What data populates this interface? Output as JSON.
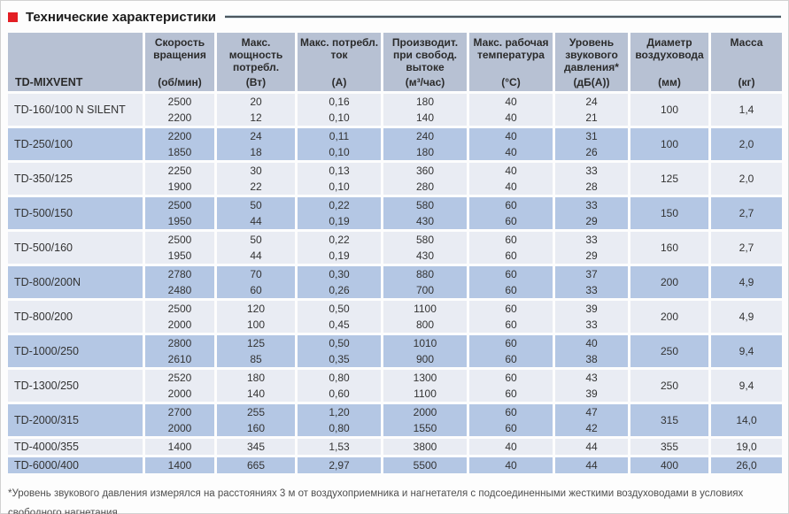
{
  "page": {
    "title": "Технические характеристики",
    "footnote": {
      "lines": [
        "*Уровень звукового давления измерялся на расстояниях 3 м от воздухоприемника и нагнетателя с подсоединенными жесткими воздуховодами в условиях",
        "свободного нагнетания."
      ]
    }
  },
  "colors": {
    "accent_red": "#e31e24",
    "header_bg": "#b7c1d3",
    "row_blue_bg": "#b4c7e4",
    "row_light_bg": "#e9ecf3",
    "text_dark": "#333333",
    "title_rule": "#4d575e"
  },
  "table": {
    "first_column_header": "TD-MIXVENT",
    "columns": [
      {
        "title": "Скорость вращения",
        "unit": "(об/мин)"
      },
      {
        "title": "Макс. мощность потребл.",
        "unit": "(Вт)"
      },
      {
        "title": "Макс. потребл. ток",
        "unit": "(А)"
      },
      {
        "title": "Производит. при свобод. вытоке",
        "unit": "(м³/час)"
      },
      {
        "title": "Макс. рабочая температура",
        "unit": "(°C)"
      },
      {
        "title": "Уровень звукового давления*",
        "unit": "(дБ(А))"
      },
      {
        "title": "Диаметр воздуховода",
        "unit": "(мм)"
      },
      {
        "title": "Масса",
        "unit": "(кг)"
      }
    ],
    "rows": [
      {
        "model": "TD-160/100 N SILENT",
        "speed": [
          "2500",
          "2200"
        ],
        "power": [
          "20",
          "12"
        ],
        "current": [
          "0,16",
          "0,10"
        ],
        "flow": [
          "180",
          "140"
        ],
        "temp": [
          "40",
          "40"
        ],
        "noise": [
          "24",
          "21"
        ],
        "diameter": "100",
        "mass": "1,4"
      },
      {
        "model": "TD-250/100",
        "speed": [
          "2200",
          "1850"
        ],
        "power": [
          "24",
          "18"
        ],
        "current": [
          "0,11",
          "0,10"
        ],
        "flow": [
          "240",
          "180"
        ],
        "temp": [
          "40",
          "40"
        ],
        "noise": [
          "31",
          "26"
        ],
        "diameter": "100",
        "mass": "2,0"
      },
      {
        "model": "TD-350/125",
        "speed": [
          "2250",
          "1900"
        ],
        "power": [
          "30",
          "22"
        ],
        "current": [
          "0,13",
          "0,10"
        ],
        "flow": [
          "360",
          "280"
        ],
        "temp": [
          "40",
          "40"
        ],
        "noise": [
          "33",
          "28"
        ],
        "diameter": "125",
        "mass": "2,0"
      },
      {
        "model": "TD-500/150",
        "speed": [
          "2500",
          "1950"
        ],
        "power": [
          "50",
          "44"
        ],
        "current": [
          "0,22",
          "0,19"
        ],
        "flow": [
          "580",
          "430"
        ],
        "temp": [
          "60",
          "60"
        ],
        "noise": [
          "33",
          "29"
        ],
        "diameter": "150",
        "mass": "2,7"
      },
      {
        "model": "TD-500/160",
        "speed": [
          "2500",
          "1950"
        ],
        "power": [
          "50",
          "44"
        ],
        "current": [
          "0,22",
          "0,19"
        ],
        "flow": [
          "580",
          "430"
        ],
        "temp": [
          "60",
          "60"
        ],
        "noise": [
          "33",
          "29"
        ],
        "diameter": "160",
        "mass": "2,7"
      },
      {
        "model": "TD-800/200N",
        "speed": [
          "2780",
          "2480"
        ],
        "power": [
          "70",
          "60"
        ],
        "current": [
          "0,30",
          "0,26"
        ],
        "flow": [
          "880",
          "700"
        ],
        "temp": [
          "60",
          "60"
        ],
        "noise": [
          "37",
          "33"
        ],
        "diameter": "200",
        "mass": "4,9"
      },
      {
        "model": "TD-800/200",
        "speed": [
          "2500",
          "2000"
        ],
        "power": [
          "120",
          "100"
        ],
        "current": [
          "0,50",
          "0,45"
        ],
        "flow": [
          "1100",
          "800"
        ],
        "temp": [
          "60",
          "60"
        ],
        "noise": [
          "39",
          "33"
        ],
        "diameter": "200",
        "mass": "4,9"
      },
      {
        "model": "TD-1000/250",
        "speed": [
          "2800",
          "2610"
        ],
        "power": [
          "125",
          "85"
        ],
        "current": [
          "0,50",
          "0,35"
        ],
        "flow": [
          "1010",
          "900"
        ],
        "temp": [
          "60",
          "60"
        ],
        "noise": [
          "40",
          "38"
        ],
        "diameter": "250",
        "mass": "9,4"
      },
      {
        "model": "TD-1300/250",
        "speed": [
          "2520",
          "2000"
        ],
        "power": [
          "180",
          "140"
        ],
        "current": [
          "0,80",
          "0,60"
        ],
        "flow": [
          "1300",
          "1100"
        ],
        "temp": [
          "60",
          "60"
        ],
        "noise": [
          "43",
          "39"
        ],
        "diameter": "250",
        "mass": "9,4"
      },
      {
        "model": "TD-2000/315",
        "speed": [
          "2700",
          "2000"
        ],
        "power": [
          "255",
          "160"
        ],
        "current": [
          "1,20",
          "0,80"
        ],
        "flow": [
          "2000",
          "1550"
        ],
        "temp": [
          "60",
          "60"
        ],
        "noise": [
          "47",
          "42"
        ],
        "diameter": "315",
        "mass": "14,0"
      },
      {
        "model": "TD-4000/355",
        "speed": [
          "1400"
        ],
        "power": [
          "345"
        ],
        "current": [
          "1,53"
        ],
        "flow": [
          "3800"
        ],
        "temp": [
          "40"
        ],
        "noise": [
          "44"
        ],
        "diameter": "355",
        "mass": "19,0"
      },
      {
        "model": "TD-6000/400",
        "speed": [
          "1400"
        ],
        "power": [
          "665"
        ],
        "current": [
          "2,97"
        ],
        "flow": [
          "5500"
        ],
        "temp": [
          "40"
        ],
        "noise": [
          "44"
        ],
        "diameter": "400",
        "mass": "26,0"
      }
    ]
  }
}
